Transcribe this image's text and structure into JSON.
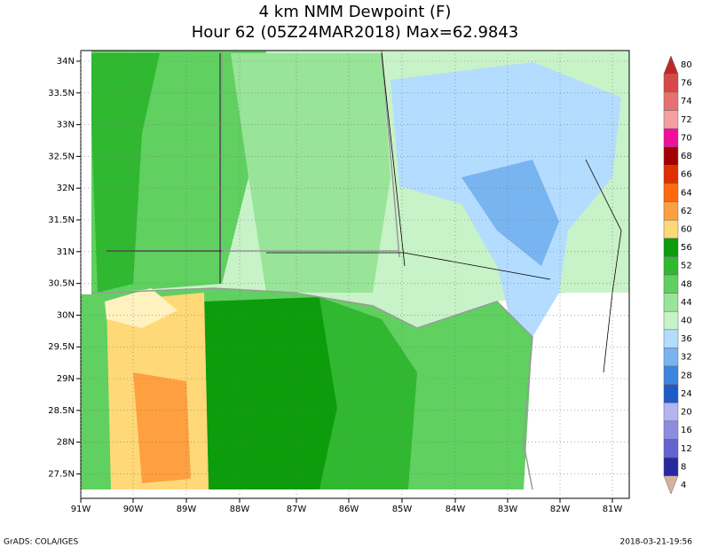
{
  "header": {
    "title": "4 km NMM Dewpoint (F)",
    "subtitle": "Hour 62 (05Z24MAR2018) Max=62.9843"
  },
  "map": {
    "lon_labels": [
      "91W",
      "90W",
      "89W",
      "88W",
      "87W",
      "86W",
      "85W",
      "84W",
      "83W",
      "82W",
      "81W"
    ],
    "lat_labels": [
      "34N",
      "33.5N",
      "33N",
      "32.5N",
      "32N",
      "31.5N",
      "31N",
      "30.5N",
      "30N",
      "29.5N",
      "29N",
      "28.5N",
      "28N",
      "27.5N"
    ]
  },
  "colorbar": {
    "labels": [
      "80",
      "76",
      "74",
      "72",
      "70",
      "68",
      "66",
      "64",
      "62",
      "60",
      "56",
      "52",
      "48",
      "44",
      "40",
      "36",
      "32",
      "28",
      "24",
      "20",
      "16",
      "12",
      "8",
      "4"
    ],
    "colors": [
      "#c02828",
      "#d84848",
      "#e87070",
      "#f4a0a0",
      "#f0109c",
      "#a00000",
      "#e03000",
      "#ff6a10",
      "#ffa040",
      "#ffd878",
      "#0c9c0c",
      "#30b830",
      "#60d060",
      "#98e498",
      "#c8f2c8",
      "#b4dcff",
      "#78b4f0",
      "#3c86e0",
      "#1e5ac8",
      "#b4b4f0",
      "#8c8ce0",
      "#6464d0",
      "#2828a0",
      "#d8b0a0"
    ]
  },
  "footer": {
    "left": "GrADS: COLA/IGES",
    "right": "2018-03-21-19:56"
  }
}
